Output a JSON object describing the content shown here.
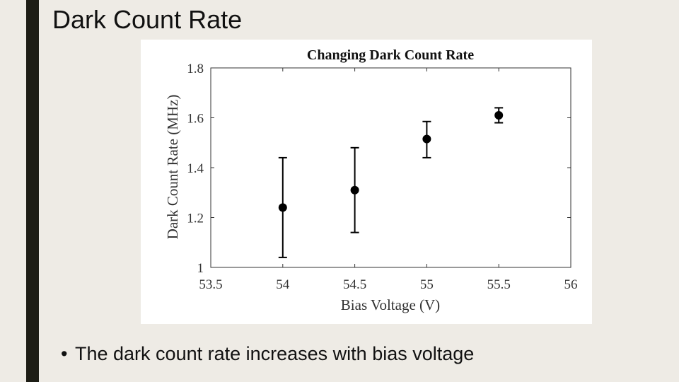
{
  "slide": {
    "title": "Dark Count Rate",
    "bullet_glyph": "•",
    "bullet_text": "The dark count rate increases with bias voltage"
  },
  "colors": {
    "background": "#eeebe5",
    "accent_bar": "#1d1d15",
    "chart_bg": "#ffffff",
    "marker": "#000000"
  },
  "chart_data": {
    "type": "scatter",
    "title": "Changing Dark Count Rate",
    "xlabel": "Bias Voltage (V)",
    "ylabel": "Dark Count Rate (MHz)",
    "xlim": [
      53.5,
      56
    ],
    "ylim": [
      1,
      1.8
    ],
    "xticks": [
      53.5,
      54,
      54.5,
      55,
      55.5,
      56
    ],
    "xtick_labels": [
      "53.5",
      "54",
      "54.5",
      "55",
      "55.5",
      "56"
    ],
    "yticks": [
      1,
      1.2,
      1.4,
      1.6,
      1.8
    ],
    "ytick_labels": [
      "1",
      "1.2",
      "1.4",
      "1.6",
      "1.8"
    ],
    "grid": false,
    "points": [
      {
        "x": 54,
        "y": 1.24,
        "err_low": 1.04,
        "err_high": 1.44
      },
      {
        "x": 54.5,
        "y": 1.31,
        "err_low": 1.14,
        "err_high": 1.48
      },
      {
        "x": 55,
        "y": 1.515,
        "err_low": 1.44,
        "err_high": 1.585
      },
      {
        "x": 55.5,
        "y": 1.61,
        "err_low": 1.58,
        "err_high": 1.64
      }
    ]
  }
}
